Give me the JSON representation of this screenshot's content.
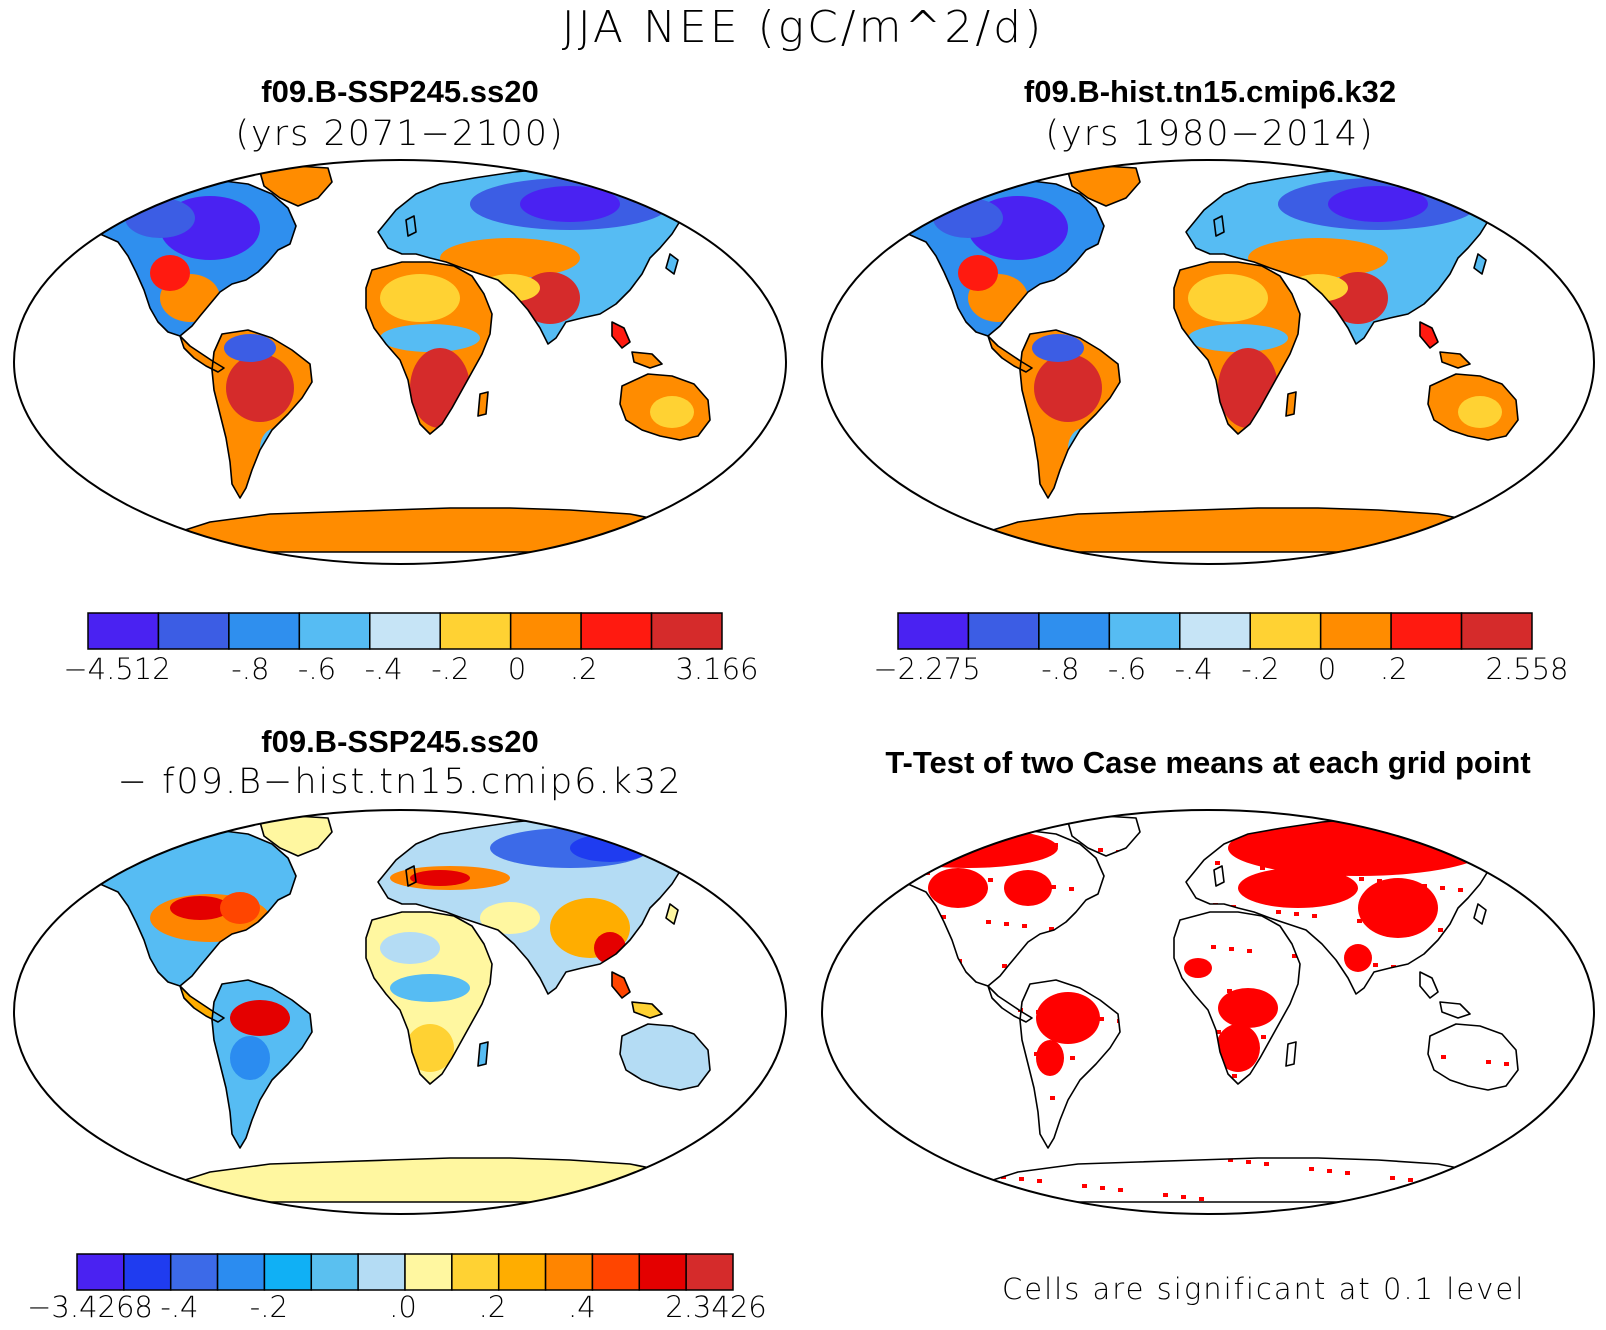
{
  "title": "JJA NEE (gC/m^2/d)",
  "panels": [
    {
      "id": "case1",
      "title": "f09.B-SSP245.ss20",
      "subtitle": "(yrs 2071−2100)",
      "palette": "bluered",
      "colorbar": {
        "colors": [
          "#4a22f2",
          "#3c5de4",
          "#2f8fee",
          "#56bcf3",
          "#c6e4f6",
          "#ffd233",
          "#ff8c00",
          "#ff1a10",
          "#d52b2b"
        ],
        "labels": [
          "−4.512",
          "-.8",
          "-.6",
          "-.4",
          "-.2",
          "0",
          ".2",
          "3.166"
        ]
      }
    },
    {
      "id": "case2",
      "title": "f09.B-hist.tn15.cmip6.k32",
      "subtitle": "(yrs 1980−2014)",
      "palette": "bluered",
      "colorbar": {
        "colors": [
          "#4a22f2",
          "#3c5de4",
          "#2f8fee",
          "#56bcf3",
          "#c6e4f6",
          "#ffd233",
          "#ff8c00",
          "#ff1a10",
          "#d52b2b"
        ],
        "labels": [
          "−2.275",
          "-.8",
          "-.6",
          "-.4",
          "-.2",
          "0",
          ".2",
          "2.558"
        ]
      }
    },
    {
      "id": "diff",
      "title": "f09.B-SSP245.ss20",
      "subtitle": "− f09.B−hist.tn15.cmip6.k32",
      "palette": "diff",
      "colorbar": {
        "colors": [
          "#4a22f2",
          "#1f3cf0",
          "#3c6ae8",
          "#2b8cf0",
          "#10b0f5",
          "#5ac0f0",
          "#b4dcf4",
          "#fff7a0",
          "#ffd233",
          "#ffad00",
          "#ff8500",
          "#ff4500",
          "#e40000",
          "#d52b2b"
        ],
        "labels": [
          "−3.4268",
          "-.4",
          "-.2",
          ".0",
          ".2",
          ".4",
          "2.3426"
        ]
      }
    },
    {
      "id": "ttest",
      "title": "T-Test of two Case means at each grid point",
      "subtitle": "",
      "palette": "sig",
      "note": "Cells are significant at 0.1 level",
      "sig_color": "#ff0000"
    }
  ]
}
